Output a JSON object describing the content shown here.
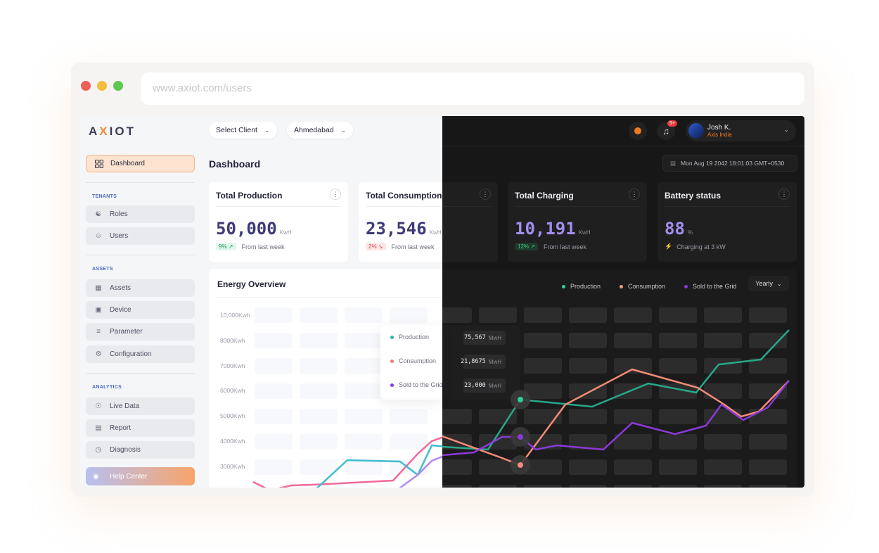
{
  "browser": {
    "url": "www.axiot.com/users"
  },
  "app": {
    "logo": {
      "prefix": "A",
      "x": "X",
      "suffix": "IOT"
    },
    "top": {
      "client_select": "Select Client",
      "city_select": "Ahmedabad",
      "notif_badge": "9+",
      "user_name": "Josh K.",
      "user_org": "Axis India",
      "date": "Mon Aug 19 2042 18:01:03 GMT+0530"
    },
    "title": "Dashboard",
    "sidebar": {
      "dashboard": "Dashboard",
      "sections": {
        "tenants": "TENANTS",
        "assets": "ASSETS",
        "analytics": "ANALYTICS"
      },
      "tenants": [
        "Roles",
        "Users"
      ],
      "assets": [
        "Assets",
        "Device",
        "Parameter",
        "Configuration"
      ],
      "analytics": [
        "Live Data",
        "Report",
        "Diagnosis"
      ],
      "help": "Help Center"
    },
    "cards": [
      {
        "title": "Total Production",
        "value": "50,000",
        "unit": "KwH",
        "chip": "9%",
        "trend": "up",
        "note": "From last week"
      },
      {
        "title": "Total Consumption",
        "value": "23,546",
        "unit": "KwH",
        "chip": "2%",
        "trend": "down",
        "note": "From last week"
      },
      {
        "title": "Total Charging",
        "value": "10,191",
        "unit": "KwH",
        "chip": "12%",
        "trend": "up",
        "note": "From last week"
      },
      {
        "title": "Battery status",
        "value": "88",
        "unit": "%",
        "note": "Charging at 3 kW"
      }
    ],
    "overview": {
      "title": "Energy Overview",
      "period": "Yearly",
      "legend": [
        "Production",
        "Consumption",
        "Sold to the Grid"
      ],
      "colors": {
        "production": "#2fb6a2",
        "consumption": "#f07c6c",
        "sold": "#8a3ad8"
      },
      "y_ticks": [
        "10,000Kwh",
        "8000Kwh",
        "7000Kwh",
        "6000Kwh",
        "5000Kwh",
        "4000Kwh",
        "3000Kwh"
      ],
      "tooltip": [
        {
          "label": "Production",
          "value": "75,567",
          "unit": "MwH"
        },
        {
          "label": "Consumption",
          "value": "21,8675",
          "unit": "MwH"
        },
        {
          "label": "Sold to the Grid",
          "value": "23,000",
          "unit": "MwH"
        }
      ]
    }
  }
}
